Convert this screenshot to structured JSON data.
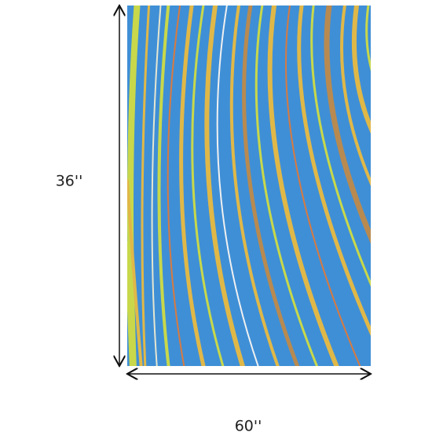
{
  "dimensions": {
    "height_label": "36''",
    "width_label": "60''"
  }
}
